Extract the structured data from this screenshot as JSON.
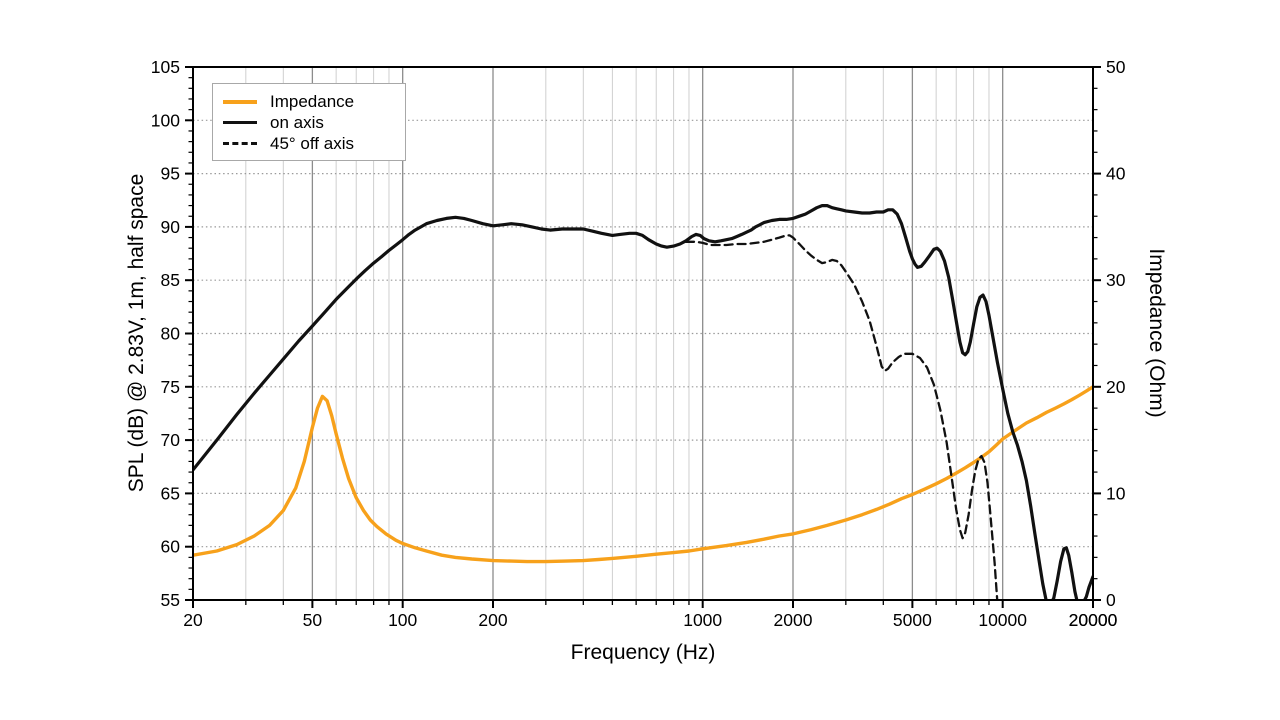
{
  "chart_data": {
    "type": "line",
    "title": "",
    "xlabel": "Frequency (Hz)",
    "ylabel_left": "SPL (dB) @ 2.83V, 1m, half space",
    "ylabel_right": "Impedance (Ohm)",
    "x_scale": "log",
    "x_range": [
      20,
      20000
    ],
    "x_ticks_labeled": [
      20,
      50,
      100,
      200,
      1000,
      2000,
      5000,
      10000,
      20000
    ],
    "y_left_range": [
      55,
      105
    ],
    "y_left_tick_step": 5,
    "y_left_minor_step": 1,
    "y_right_range": [
      0,
      50
    ],
    "y_right_tick_step": 10,
    "y_right_minor_step": 2,
    "grid": "on",
    "legend_position": "top-left",
    "colors": {
      "impedance": "#F7A11B",
      "spl": "#111111",
      "grid_minor": "#cfcfcf",
      "grid_major": "#8c8c8c",
      "grid_dotted": "#9a9a9a",
      "legend_border": "#a8a8a8"
    },
    "legend": [
      {
        "label": "Impedance",
        "style": "solid",
        "color": "#F7A11B"
      },
      {
        "label": "on axis",
        "style": "solid",
        "color": "#111111"
      },
      {
        "label": "45° off axis",
        "style": "dashed",
        "color": "#111111"
      }
    ],
    "series": [
      {
        "name": "Impedance",
        "axis": "right",
        "color": "#F7A11B",
        "style": "solid",
        "width": 3.4,
        "points": [
          [
            20,
            4.2
          ],
          [
            24,
            4.6
          ],
          [
            28,
            5.2
          ],
          [
            32,
            6.0
          ],
          [
            36,
            7.0
          ],
          [
            40,
            8.4
          ],
          [
            44,
            10.5
          ],
          [
            47,
            13.0
          ],
          [
            50,
            16.2
          ],
          [
            52,
            18.0
          ],
          [
            54,
            19.1
          ],
          [
            56,
            18.7
          ],
          [
            58,
            17.3
          ],
          [
            60,
            15.6
          ],
          [
            63,
            13.3
          ],
          [
            66,
            11.4
          ],
          [
            70,
            9.6
          ],
          [
            74,
            8.4
          ],
          [
            78,
            7.5
          ],
          [
            82,
            6.9
          ],
          [
            88,
            6.2
          ],
          [
            95,
            5.6
          ],
          [
            100,
            5.3
          ],
          [
            110,
            4.9
          ],
          [
            120,
            4.6
          ],
          [
            135,
            4.2
          ],
          [
            150,
            4.0
          ],
          [
            170,
            3.85
          ],
          [
            200,
            3.7
          ],
          [
            230,
            3.65
          ],
          [
            260,
            3.6
          ],
          [
            300,
            3.6
          ],
          [
            350,
            3.65
          ],
          [
            400,
            3.7
          ],
          [
            450,
            3.8
          ],
          [
            500,
            3.9
          ],
          [
            600,
            4.1
          ],
          [
            700,
            4.3
          ],
          [
            800,
            4.45
          ],
          [
            900,
            4.6
          ],
          [
            1000,
            4.8
          ],
          [
            1200,
            5.1
          ],
          [
            1400,
            5.4
          ],
          [
            1600,
            5.7
          ],
          [
            1800,
            6.0
          ],
          [
            2000,
            6.2
          ],
          [
            2300,
            6.6
          ],
          [
            2600,
            7.0
          ],
          [
            3000,
            7.5
          ],
          [
            3400,
            8.0
          ],
          [
            3800,
            8.5
          ],
          [
            4200,
            9.0
          ],
          [
            4600,
            9.5
          ],
          [
            5000,
            9.9
          ],
          [
            5500,
            10.4
          ],
          [
            6000,
            10.9
          ],
          [
            6500,
            11.4
          ],
          [
            7000,
            11.9
          ],
          [
            7500,
            12.4
          ],
          [
            8000,
            12.9
          ],
          [
            8500,
            13.4
          ],
          [
            9000,
            13.9
          ],
          [
            9500,
            14.5
          ],
          [
            10000,
            15.1
          ],
          [
            11000,
            15.9
          ],
          [
            12000,
            16.6
          ],
          [
            13000,
            17.1
          ],
          [
            14000,
            17.6
          ],
          [
            15000,
            18.0
          ],
          [
            16000,
            18.4
          ],
          [
            17000,
            18.8
          ],
          [
            18000,
            19.2
          ],
          [
            19000,
            19.6
          ],
          [
            20000,
            20.0
          ]
        ]
      },
      {
        "name": "on axis",
        "axis": "left",
        "color": "#111111",
        "style": "solid",
        "width": 3.2,
        "points": [
          [
            20,
            67.2
          ],
          [
            24,
            70.0
          ],
          [
            28,
            72.4
          ],
          [
            32,
            74.4
          ],
          [
            36,
            76.1
          ],
          [
            40,
            77.6
          ],
          [
            45,
            79.3
          ],
          [
            50,
            80.7
          ],
          [
            55,
            82.0
          ],
          [
            60,
            83.2
          ],
          [
            65,
            84.2
          ],
          [
            70,
            85.1
          ],
          [
            75,
            85.9
          ],
          [
            80,
            86.6
          ],
          [
            85,
            87.2
          ],
          [
            90,
            87.8
          ],
          [
            95,
            88.3
          ],
          [
            100,
            88.8
          ],
          [
            105,
            89.3
          ],
          [
            110,
            89.7
          ],
          [
            115,
            90.0
          ],
          [
            120,
            90.3
          ],
          [
            130,
            90.6
          ],
          [
            140,
            90.8
          ],
          [
            150,
            90.9
          ],
          [
            160,
            90.8
          ],
          [
            170,
            90.6
          ],
          [
            185,
            90.3
          ],
          [
            200,
            90.1
          ],
          [
            215,
            90.2
          ],
          [
            230,
            90.3
          ],
          [
            250,
            90.2
          ],
          [
            270,
            90.0
          ],
          [
            290,
            89.8
          ],
          [
            310,
            89.7
          ],
          [
            340,
            89.8
          ],
          [
            370,
            89.8
          ],
          [
            400,
            89.8
          ],
          [
            430,
            89.6
          ],
          [
            460,
            89.4
          ],
          [
            500,
            89.2
          ],
          [
            530,
            89.3
          ],
          [
            570,
            89.4
          ],
          [
            600,
            89.4
          ],
          [
            630,
            89.2
          ],
          [
            660,
            88.8
          ],
          [
            700,
            88.4
          ],
          [
            730,
            88.2
          ],
          [
            760,
            88.1
          ],
          [
            800,
            88.2
          ],
          [
            840,
            88.4
          ],
          [
            880,
            88.7
          ],
          [
            920,
            89.1
          ],
          [
            950,
            89.3
          ],
          [
            980,
            89.2
          ],
          [
            1010,
            88.9
          ],
          [
            1050,
            88.7
          ],
          [
            1100,
            88.6
          ],
          [
            1150,
            88.7
          ],
          [
            1200,
            88.8
          ],
          [
            1250,
            88.9
          ],
          [
            1300,
            89.1
          ],
          [
            1350,
            89.3
          ],
          [
            1400,
            89.5
          ],
          [
            1450,
            89.7
          ],
          [
            1500,
            90.0
          ],
          [
            1550,
            90.2
          ],
          [
            1600,
            90.4
          ],
          [
            1700,
            90.6
          ],
          [
            1800,
            90.7
          ],
          [
            1900,
            90.7
          ],
          [
            2000,
            90.8
          ],
          [
            2100,
            91.0
          ],
          [
            2200,
            91.2
          ],
          [
            2300,
            91.5
          ],
          [
            2400,
            91.8
          ],
          [
            2500,
            92.0
          ],
          [
            2600,
            92.0
          ],
          [
            2700,
            91.8
          ],
          [
            2800,
            91.7
          ],
          [
            2900,
            91.6
          ],
          [
            3000,
            91.5
          ],
          [
            3200,
            91.4
          ],
          [
            3400,
            91.3
          ],
          [
            3600,
            91.3
          ],
          [
            3800,
            91.4
          ],
          [
            4000,
            91.4
          ],
          [
            4150,
            91.6
          ],
          [
            4300,
            91.6
          ],
          [
            4450,
            91.2
          ],
          [
            4600,
            90.3
          ],
          [
            4750,
            89.0
          ],
          [
            4900,
            87.7
          ],
          [
            5000,
            87.0
          ],
          [
            5100,
            86.5
          ],
          [
            5200,
            86.2
          ],
          [
            5350,
            86.3
          ],
          [
            5500,
            86.7
          ],
          [
            5700,
            87.3
          ],
          [
            5900,
            87.9
          ],
          [
            6050,
            88.0
          ],
          [
            6200,
            87.7
          ],
          [
            6400,
            86.8
          ],
          [
            6600,
            85.3
          ],
          [
            6800,
            83.3
          ],
          [
            7000,
            81.2
          ],
          [
            7200,
            79.2
          ],
          [
            7350,
            78.2
          ],
          [
            7500,
            78.0
          ],
          [
            7650,
            78.3
          ],
          [
            7800,
            79.2
          ],
          [
            8000,
            80.9
          ],
          [
            8200,
            82.5
          ],
          [
            8400,
            83.4
          ],
          [
            8600,
            83.6
          ],
          [
            8800,
            83.0
          ],
          [
            9000,
            81.7
          ],
          [
            9300,
            79.5
          ],
          [
            9600,
            77.3
          ],
          [
            10000,
            74.8
          ],
          [
            10400,
            72.5
          ],
          [
            10800,
            70.8
          ],
          [
            11200,
            69.5
          ],
          [
            11600,
            68.0
          ],
          [
            12000,
            66.2
          ],
          [
            12400,
            63.8
          ],
          [
            12800,
            61.2
          ],
          [
            13200,
            58.8
          ],
          [
            13600,
            56.5
          ],
          [
            14000,
            54.8
          ],
          [
            14400,
            54.5
          ],
          [
            14800,
            55.2
          ],
          [
            15200,
            56.8
          ],
          [
            15600,
            58.6
          ],
          [
            16000,
            59.8
          ],
          [
            16300,
            59.9
          ],
          [
            16600,
            59.2
          ],
          [
            17000,
            57.6
          ],
          [
            17400,
            55.8
          ],
          [
            17800,
            54.6
          ],
          [
            18200,
            54.4
          ],
          [
            18600,
            54.8
          ],
          [
            19000,
            55.3
          ],
          [
            19400,
            56.2
          ],
          [
            20000,
            57.2
          ]
        ]
      },
      {
        "name": "45° off axis",
        "axis": "left",
        "color": "#111111",
        "style": "dashed",
        "width": 2.3,
        "points": [
          [
            880,
            88.6
          ],
          [
            950,
            88.6
          ],
          [
            1000,
            88.5
          ],
          [
            1060,
            88.3
          ],
          [
            1120,
            88.3
          ],
          [
            1200,
            88.3
          ],
          [
            1300,
            88.4
          ],
          [
            1400,
            88.4
          ],
          [
            1500,
            88.5
          ],
          [
            1600,
            88.6
          ],
          [
            1700,
            88.8
          ],
          [
            1800,
            89.0
          ],
          [
            1900,
            89.2
          ],
          [
            1950,
            89.2
          ],
          [
            2000,
            89.0
          ],
          [
            2100,
            88.4
          ],
          [
            2200,
            87.8
          ],
          [
            2300,
            87.3
          ],
          [
            2400,
            86.9
          ],
          [
            2500,
            86.6
          ],
          [
            2600,
            86.7
          ],
          [
            2700,
            86.9
          ],
          [
            2800,
            86.8
          ],
          [
            2900,
            86.4
          ],
          [
            3000,
            85.8
          ],
          [
            3200,
            84.6
          ],
          [
            3400,
            83.0
          ],
          [
            3600,
            81.2
          ],
          [
            3800,
            78.8
          ],
          [
            3950,
            76.9
          ],
          [
            4050,
            76.5
          ],
          [
            4150,
            76.7
          ],
          [
            4300,
            77.3
          ],
          [
            4500,
            77.8
          ],
          [
            4700,
            78.1
          ],
          [
            5000,
            78.1
          ],
          [
            5300,
            77.7
          ],
          [
            5600,
            76.8
          ],
          [
            5900,
            75.2
          ],
          [
            6200,
            72.8
          ],
          [
            6500,
            69.8
          ],
          [
            6800,
            66.0
          ],
          [
            7000,
            63.5
          ],
          [
            7200,
            61.6
          ],
          [
            7350,
            60.8
          ],
          [
            7500,
            61.3
          ],
          [
            7700,
            63.0
          ],
          [
            7900,
            65.3
          ],
          [
            8100,
            67.1
          ],
          [
            8300,
            68.2
          ],
          [
            8500,
            68.5
          ],
          [
            8700,
            67.9
          ],
          [
            8900,
            66.0
          ],
          [
            9100,
            63.0
          ],
          [
            9400,
            58.5
          ],
          [
            9700,
            53.0
          ]
        ]
      }
    ]
  }
}
